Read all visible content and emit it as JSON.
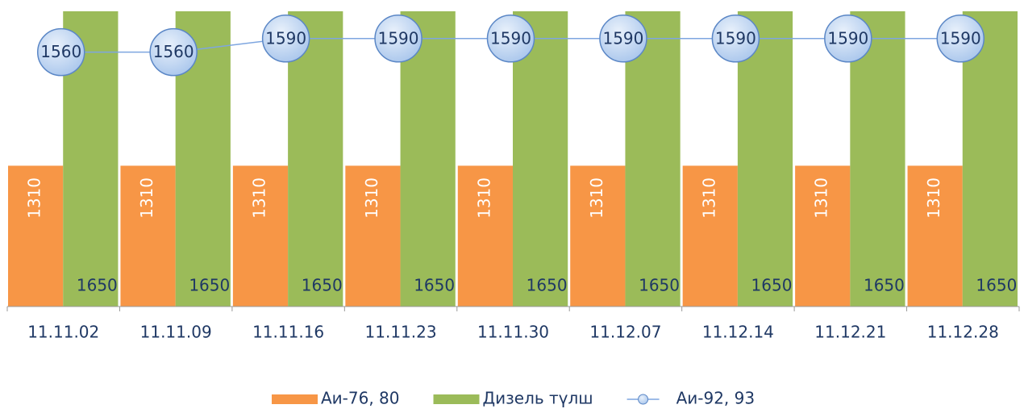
{
  "chart_data": {
    "type": "bar",
    "categories": [
      "11.11.02",
      "11.11.09",
      "11.11.16",
      "11.11.23",
      "11.11.30",
      "11.12.07",
      "11.12.14",
      "11.12.21",
      "11.12.28"
    ],
    "series": [
      {
        "name": "Аи-76, 80",
        "color": "#f79646",
        "values": [
          1310,
          1310,
          1310,
          1310,
          1310,
          1310,
          1310,
          1310,
          1310
        ]
      },
      {
        "name": "Дизель түлш",
        "color": "#9bbb59",
        "values": [
          1650,
          1650,
          1650,
          1650,
          1650,
          1650,
          1650,
          1650,
          1650
        ]
      },
      {
        "name": "Аи-92, 93",
        "type": "line",
        "color": "#7ea6e0",
        "values": [
          1560,
          1560,
          1590,
          1590,
          1590,
          1590,
          1590,
          1590,
          1590
        ]
      }
    ],
    "ylim": [
      1000,
      1650
    ]
  }
}
